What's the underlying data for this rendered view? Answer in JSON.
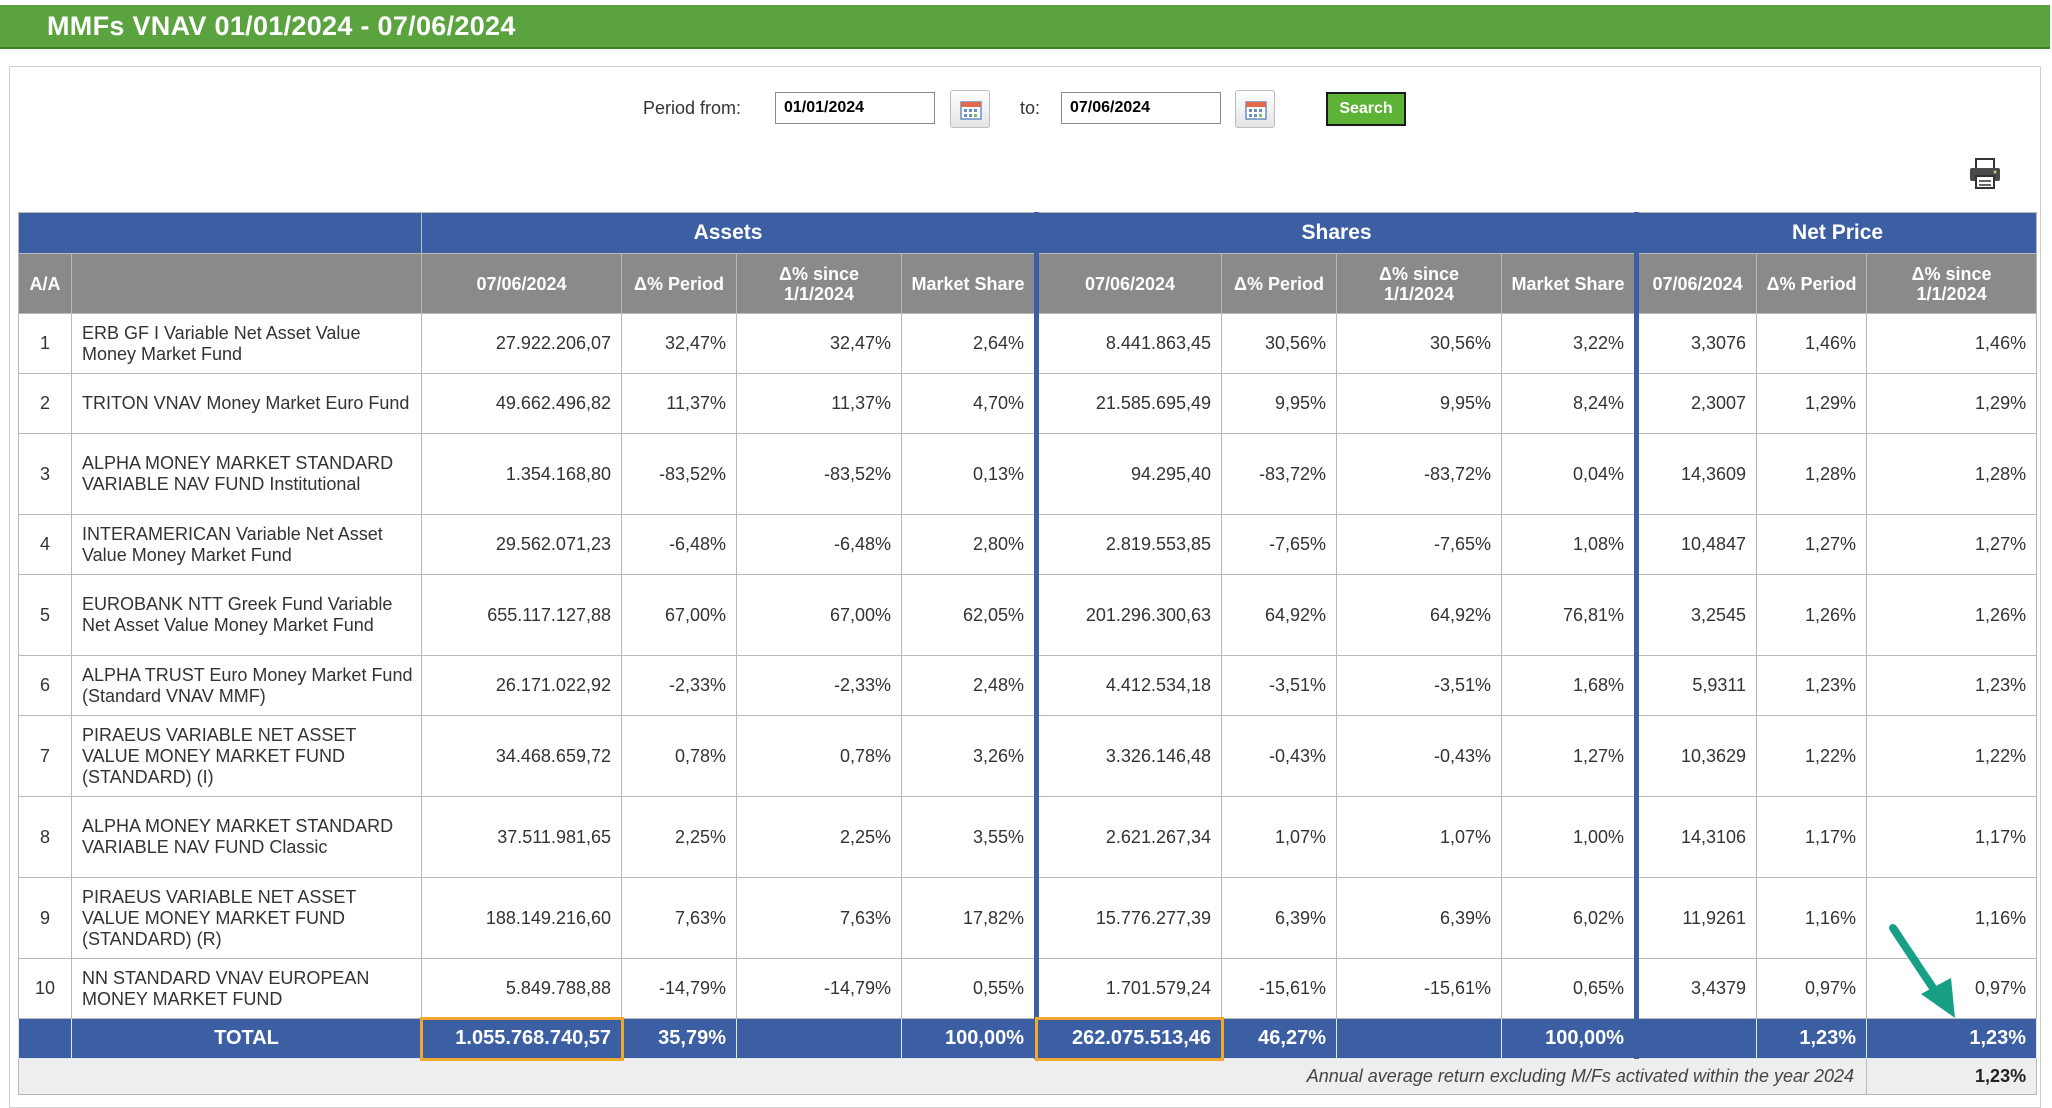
{
  "header": {
    "title": "MMFs VNAV 01/01/2024 - 07/06/2024"
  },
  "filters": {
    "period_from_label": "Period  from:",
    "from_date": "01/01/2024",
    "to_label": "to:",
    "to_date": "07/06/2024",
    "search_label": "Search"
  },
  "table": {
    "groups": {
      "assets": "Assets",
      "shares": "Shares",
      "net_price": "Net Price"
    },
    "columns": {
      "aa": "A/A",
      "assets_date": "07/06/2024",
      "assets_period": "Δ% Period",
      "assets_since": "Δ% since 1/1/2024",
      "assets_share": "Market Share",
      "shares_date": "07/06/2024",
      "shares_period": "Δ% Period",
      "shares_since": "Δ% since 1/1/2024",
      "shares_share": "Market Share",
      "np_date": "07/06/2024",
      "np_period": "Δ% Period",
      "np_since": "Δ% since 1/1/2024"
    },
    "rows": [
      {
        "aa": "1",
        "name": "ERB GF I Variable Net Asset Value Money Market Fund",
        "assets": "27.922.206,07",
        "assets_period": "32,47%",
        "assets_since": "32,47%",
        "assets_share": "2,64%",
        "shares": "8.441.863,45",
        "shares_period": "30,56%",
        "shares_since": "30,56%",
        "shares_share": "3,22%",
        "np": "3,3076",
        "np_period": "1,46%",
        "np_since": "1,46%"
      },
      {
        "aa": "2",
        "name": "TRITON VNAV Money Market Euro Fund",
        "assets": "49.662.496,82",
        "assets_period": "11,37%",
        "assets_since": "11,37%",
        "assets_share": "4,70%",
        "shares": "21.585.695,49",
        "shares_period": "9,95%",
        "shares_since": "9,95%",
        "shares_share": "8,24%",
        "np": "2,3007",
        "np_period": "1,29%",
        "np_since": "1,29%"
      },
      {
        "aa": "3",
        "name": "ALPHA MONEY MARKET STANDARD VARIABLE NAV FUND Institutional",
        "assets": "1.354.168,80",
        "assets_period": "-83,52%",
        "assets_since": "-83,52%",
        "assets_share": "0,13%",
        "shares": "94.295,40",
        "shares_period": "-83,72%",
        "shares_since": "-83,72%",
        "shares_share": "0,04%",
        "np": "14,3609",
        "np_period": "1,28%",
        "np_since": "1,28%"
      },
      {
        "aa": "4",
        "name": "INTERAMERICAN Variable Net Asset Value Money Market Fund",
        "assets": "29.562.071,23",
        "assets_period": "-6,48%",
        "assets_since": "-6,48%",
        "assets_share": "2,80%",
        "shares": "2.819.553,85",
        "shares_period": "-7,65%",
        "shares_since": "-7,65%",
        "shares_share": "1,08%",
        "np": "10,4847",
        "np_period": "1,27%",
        "np_since": "1,27%"
      },
      {
        "aa": "5",
        "name": "EUROBANK NTT Greek Fund Variable Net Asset Value Money Market Fund",
        "assets": "655.117.127,88",
        "assets_period": "67,00%",
        "assets_since": "67,00%",
        "assets_share": "62,05%",
        "shares": "201.296.300,63",
        "shares_period": "64,92%",
        "shares_since": "64,92%",
        "shares_share": "76,81%",
        "np": "3,2545",
        "np_period": "1,26%",
        "np_since": "1,26%"
      },
      {
        "aa": "6",
        "name": "ALPHA TRUST Euro Money Market Fund (Standard VNAV MMF)",
        "assets": "26.171.022,92",
        "assets_period": "-2,33%",
        "assets_since": "-2,33%",
        "assets_share": "2,48%",
        "shares": "4.412.534,18",
        "shares_period": "-3,51%",
        "shares_since": "-3,51%",
        "shares_share": "1,68%",
        "np": "5,9311",
        "np_period": "1,23%",
        "np_since": "1,23%"
      },
      {
        "aa": "7",
        "name": "PIRAEUS VARIABLE NET ASSET VALUE MONEY MARKET FUND (STANDARD) (I)",
        "assets": "34.468.659,72",
        "assets_period": "0,78%",
        "assets_since": "0,78%",
        "assets_share": "3,26%",
        "shares": "3.326.146,48",
        "shares_period": "-0,43%",
        "shares_since": "-0,43%",
        "shares_share": "1,27%",
        "np": "10,3629",
        "np_period": "1,22%",
        "np_since": "1,22%"
      },
      {
        "aa": "8",
        "name": "ALPHA MONEY MARKET STANDARD VARIABLE NAV FUND Classic",
        "assets": "37.511.981,65",
        "assets_period": "2,25%",
        "assets_since": "2,25%",
        "assets_share": "3,55%",
        "shares": "2.621.267,34",
        "shares_period": "1,07%",
        "shares_since": "1,07%",
        "shares_share": "1,00%",
        "np": "14,3106",
        "np_period": "1,17%",
        "np_since": "1,17%"
      },
      {
        "aa": "9",
        "name": "PIRAEUS VARIABLE NET ASSET VALUE MONEY MARKET FUND (STANDARD) (R)",
        "assets": "188.149.216,60",
        "assets_period": "7,63%",
        "assets_since": "7,63%",
        "assets_share": "17,82%",
        "shares": "15.776.277,39",
        "shares_period": "6,39%",
        "shares_since": "6,39%",
        "shares_share": "6,02%",
        "np": "11,9261",
        "np_period": "1,16%",
        "np_since": "1,16%"
      },
      {
        "aa": "10",
        "name": "NN STANDARD VNAV EUROPEAN MONEY MARKET FUND",
        "assets": "5.849.788,88",
        "assets_period": "-14,79%",
        "assets_since": "-14,79%",
        "assets_share": "0,55%",
        "shares": "1.701.579,24",
        "shares_period": "-15,61%",
        "shares_since": "-15,61%",
        "shares_share": "0,65%",
        "np": "3,4379",
        "np_period": "0,97%",
        "np_since": "0,97%"
      }
    ],
    "total": {
      "label": "TOTAL",
      "assets": "1.055.768.740,57",
      "assets_period": "35,79%",
      "assets_share": "100,00%",
      "shares": "262.075.513,46",
      "shares_period": "46,27%",
      "shares_share": "100,00%",
      "np_period": "1,23%",
      "np_since": "1,23%"
    },
    "footer": {
      "note": "Annual average return excluding M/Fs activated within the year 2024",
      "value": "1,23%"
    }
  },
  "colors": {
    "title_bar": "#5aa33f",
    "table_header": "#3c5fa4",
    "subheader": "#8a8a8a",
    "highlight": "#f0a830",
    "arrow": "#17a085"
  }
}
